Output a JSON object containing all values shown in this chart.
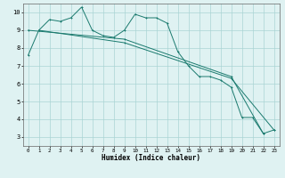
{
  "xlabel": "Humidex (Indice chaleur)",
  "bg_color": "#dff2f2",
  "grid_color": "#aad4d4",
  "line_color": "#1a7a6e",
  "xlim": [
    -0.5,
    23.5
  ],
  "ylim": [
    2.5,
    10.5
  ],
  "xticks": [
    0,
    1,
    2,
    3,
    4,
    5,
    6,
    7,
    8,
    9,
    10,
    11,
    12,
    13,
    14,
    15,
    16,
    17,
    18,
    19,
    20,
    21,
    22,
    23
  ],
  "yticks": [
    3,
    4,
    5,
    6,
    7,
    8,
    9,
    10
  ],
  "line1_x": [
    0,
    1,
    2,
    3,
    4,
    5,
    6,
    7,
    8,
    9,
    10,
    11,
    12,
    13,
    14,
    15,
    16,
    17,
    18,
    19,
    20,
    21,
    22,
    23
  ],
  "line1_y": [
    7.6,
    9.0,
    9.6,
    9.5,
    9.7,
    10.3,
    9.0,
    8.7,
    8.6,
    9.0,
    9.9,
    9.7,
    9.7,
    9.4,
    7.8,
    7.0,
    6.4,
    6.4,
    6.2,
    5.8,
    4.1,
    4.1,
    3.2,
    3.4
  ],
  "line2_x": [
    0,
    9,
    19,
    22
  ],
  "line2_y": [
    9.0,
    8.5,
    6.4,
    3.2
  ],
  "line3_x": [
    1,
    9,
    19,
    23
  ],
  "line3_y": [
    9.0,
    8.3,
    6.3,
    3.4
  ]
}
